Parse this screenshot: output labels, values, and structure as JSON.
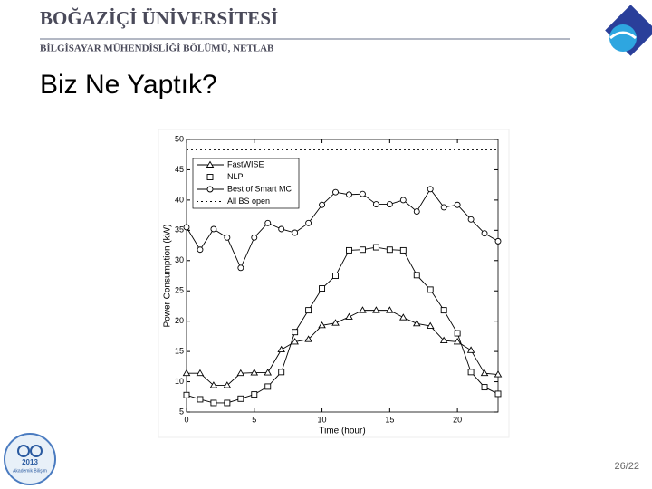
{
  "header": {
    "university": "BOĞAZİÇİ ÜNİVERSİTESİ",
    "department": "BİLGİSAYAR MÜHENDİSLİĞİ BÖLÜMÜ, NETLAB"
  },
  "slide_title": "Biz Ne Yaptık?",
  "page_number": "26/22",
  "logo": {
    "year": "2013",
    "name": "Akademik Bilişim"
  },
  "chart_data": {
    "type": "line",
    "x_label": "Time (hour)",
    "y_label": "Power Consumption (kW)",
    "x": [
      0,
      1,
      2,
      3,
      4,
      5,
      6,
      7,
      8,
      9,
      10,
      11,
      12,
      13,
      14,
      15,
      16,
      17,
      18,
      19,
      20,
      21,
      22,
      23
    ],
    "series": [
      {
        "name": "FastWISE",
        "color": "#000000",
        "marker": "triangle",
        "dash": "solid",
        "values": [
          11.4,
          11.4,
          9.4,
          9.4,
          11.4,
          11.5,
          11.5,
          15.3,
          16.6,
          17,
          19.3,
          19.7,
          20.7,
          21.8,
          21.8,
          21.8,
          20.6,
          19.6,
          19.2,
          16.8,
          16.6,
          15.2,
          11.4,
          11.2
        ]
      },
      {
        "name": "NLP",
        "color": "#000000",
        "marker": "square",
        "dash": "solid",
        "values": [
          7.8,
          7.1,
          6.5,
          6.5,
          7.2,
          7.9,
          9.2,
          11.6,
          18.2,
          21.8,
          25.4,
          27.5,
          31.7,
          31.8,
          32.2,
          31.8,
          31.7,
          27.6,
          25.2,
          21.8,
          18,
          11.6,
          9.1,
          8
        ]
      },
      {
        "name": "Best of Smart MC",
        "color": "#000000",
        "marker": "circle",
        "dash": "solid",
        "values": [
          35.5,
          31.8,
          35.2,
          33.8,
          28.8,
          33.8,
          36.2,
          35.2,
          34.6,
          36.2,
          39.2,
          41.3,
          40.9,
          41,
          39.3,
          39.3,
          40,
          38.1,
          41.8,
          38.8,
          39.2,
          36.8,
          34.5,
          33.2
        ]
      },
      {
        "name": "All BS open",
        "color": "#000000",
        "marker": "none",
        "dash": "dotted",
        "values": [
          48.3,
          48.3,
          48.3,
          48.3,
          48.3,
          48.3,
          48.3,
          48.3,
          48.3,
          48.3,
          48.3,
          48.3,
          48.3,
          48.3,
          48.3,
          48.3,
          48.3,
          48.3,
          48.3,
          48.3,
          48.3,
          48.3,
          48.3,
          48.3
        ]
      }
    ],
    "xlim": [
      0,
      23
    ],
    "xticks": [
      0,
      5,
      10,
      15,
      20
    ],
    "ylim": [
      5,
      50
    ],
    "yticks": [
      5,
      10,
      15,
      20,
      25,
      30,
      35,
      40,
      45,
      50
    ],
    "legend": "upper-left",
    "grid": false
  }
}
